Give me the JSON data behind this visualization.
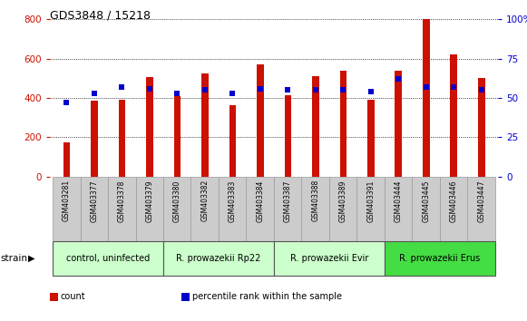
{
  "title": "GDS3848 / 15218",
  "samples": [
    "GSM403281",
    "GSM403377",
    "GSM403378",
    "GSM403379",
    "GSM403380",
    "GSM403382",
    "GSM403383",
    "GSM403384",
    "GSM403387",
    "GSM403388",
    "GSM403389",
    "GSM403391",
    "GSM403444",
    "GSM403445",
    "GSM403446",
    "GSM403447"
  ],
  "counts": [
    175,
    385,
    390,
    505,
    410,
    525,
    365,
    570,
    415,
    510,
    540,
    390,
    540,
    800,
    620,
    500
  ],
  "percentile_ranks": [
    47,
    53,
    57,
    56,
    53,
    55,
    53,
    56,
    55,
    55,
    55,
    54,
    62,
    57,
    57,
    55
  ],
  "bar_color": "#cc1100",
  "dot_color": "#0000cc",
  "ylim_left": [
    0,
    800
  ],
  "ylim_right": [
    0,
    100
  ],
  "yticks_left": [
    0,
    200,
    400,
    600,
    800
  ],
  "yticks_right": [
    0,
    25,
    50,
    75,
    100
  ],
  "left_tick_color": "#cc1100",
  "right_tick_color": "#0000cc",
  "grid_style": "dotted",
  "group_labels": [
    "control, uninfected",
    "R. prowazekii Rp22",
    "R. prowazekii Evir",
    "R. prowazekii Erus"
  ],
  "group_starts": [
    0,
    4,
    8,
    12
  ],
  "group_ends": [
    3,
    7,
    11,
    15
  ],
  "group_colors": [
    "#ccffcc",
    "#ccffcc",
    "#ccffcc",
    "#44dd44"
  ],
  "strain_label": "strain",
  "legend_labels": [
    "count",
    "percentile rank within the sample"
  ],
  "legend_colors": [
    "#cc1100",
    "#0000cc"
  ],
  "bg_color": "#ffffff",
  "label_bg_color": "#cccccc",
  "bar_width": 0.25
}
